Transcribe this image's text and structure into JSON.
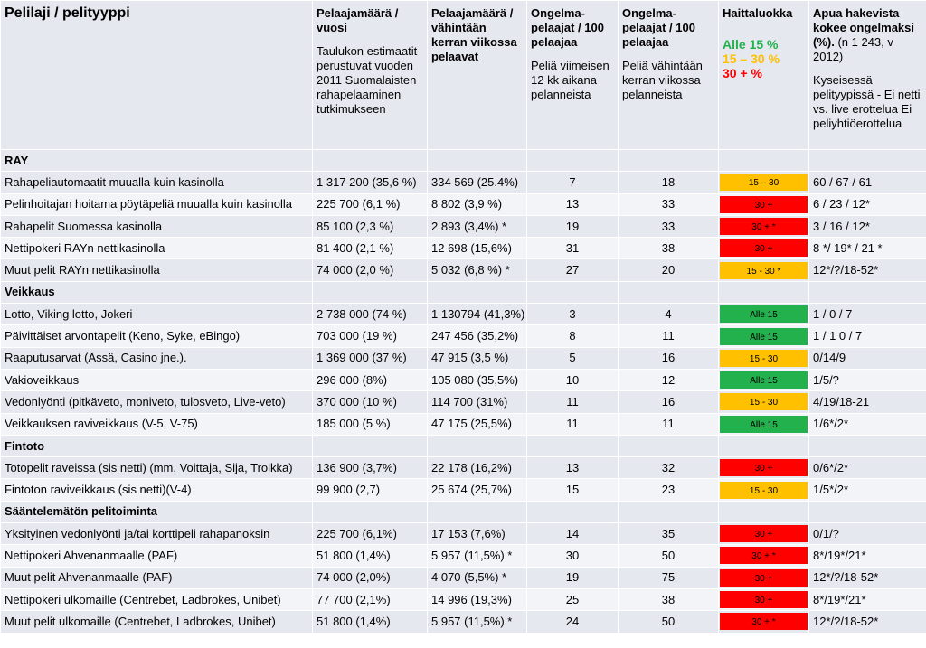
{
  "header": {
    "col1": "Pelilaji / pelityyppi",
    "col2_title": "Pelaajamäärä / vuosi",
    "col2_note": "Taulukon estimaatit perustuvat vuoden 2011 Suomalaisten rahapelaaminen tutkimukseen",
    "col3_title": "Pelaajamäärä / vähintään kerran viikossa pelaavat",
    "col4_title": "Ongelma-pelaajat / 100 pelaajaa",
    "col4_note": "Peliä viimeisen 12 kk aikana pelanneista",
    "col5_title": "Ongelma-pelaajat / 100 pelaajaa",
    "col5_note": "Peliä vähintään kerran viikossa pelanneista",
    "col6_title": "Haittaluokka",
    "legend_green": "Alle 15 %",
    "legend_orange": "15 – 30 %",
    "legend_red": "30 + %",
    "col7_title": "Apua hakevista kokee ongelmaksi (%).",
    "col7_sub": " (n 1 243, v 2012)",
    "col7_note": "Kyseisessä pelityypissä - Ei netti vs. live erottelua Ei peliyhtiöerottelua"
  },
  "colors": {
    "red": "#ff0000",
    "orange": "#ffc000",
    "green": "#23b14d",
    "row_dark": "#e6e8ef",
    "row_light": "#f3f4f8"
  },
  "rows": [
    {
      "type": "section",
      "name": "RAY"
    },
    {
      "type": "data",
      "name": "Rahapeliautomaatit muualla kuin kasinolla",
      "players": "1 317 200 (35,6 %)",
      "weekly": "334 569 (25.4%)",
      "p12": "7",
      "pweek": "18",
      "level": "orange",
      "label": "15 – 30",
      "help": "60 / 67 / 61"
    },
    {
      "type": "data",
      "name": "Pelinhoitajan hoitama pöytäpeliä muualla kuin kasinolla",
      "players": "225 700 (6,1 %)",
      "weekly": "8 802 (3,9 %)",
      "p12": "13",
      "pweek": "33",
      "level": "red",
      "label": "30 +",
      "help": "6 / 23 / 12*"
    },
    {
      "type": "data",
      "name": "Rahapelit Suomessa kasinolla",
      "players": "85 100 (2,3 %)",
      "weekly": "2 893 (3,4%) *",
      "p12": "19",
      "pweek": "33",
      "level": "red",
      "label": "30 + *",
      "help": "3 / 16 / 12*"
    },
    {
      "type": "data",
      "name": "Nettipokeri RAYn nettikasinolla",
      "players": "81 400 (2,1 %)",
      "weekly": "12 698 (15,6%)",
      "p12": "31",
      "pweek": "38",
      "level": "red",
      "label": "30 +",
      "help": "8 */ 19* / 21 *"
    },
    {
      "type": "data",
      "name": "Muut pelit RAYn nettikasinolla",
      "players": "74 000 (2,0 %)",
      "weekly": "5 032 (6,8 %) *",
      "p12": "27",
      "pweek": "20",
      "level": "orange",
      "label": "15 - 30 *",
      "help": "12*/?/18-52*"
    },
    {
      "type": "section",
      "name": "Veikkaus"
    },
    {
      "type": "data",
      "name": "Lotto, Viking lotto, Jokeri",
      "players": "2 738 000 (74 %)",
      "weekly": "1 130794 (41,3%)",
      "p12": "3",
      "pweek": "4",
      "level": "green",
      "label": "Alle 15",
      "help": "1 / 0 / 7"
    },
    {
      "type": "data",
      "name": "Päivittäiset arvontapelit (Keno, Syke, eBingo)",
      "players": "703 000 (19 %)",
      "weekly": "247 456 (35,2%)",
      "p12": "8",
      "pweek": "11",
      "level": "green",
      "label": "Alle 15",
      "help": "1 / 1 0 / 7"
    },
    {
      "type": "data",
      "name": "Raaputusarvat (Ässä, Casino jne.).",
      "players": "1 369 000 (37 %)",
      "weekly": "47 915 (3,5 %)",
      "p12": "5",
      "pweek": "16",
      "level": "orange",
      "label": "15 - 30",
      "help": "0/14/9"
    },
    {
      "type": "data",
      "name": "Vakioveikkaus",
      "players": "296 000 (8%)",
      "weekly": "105 080 (35,5%)",
      "p12": "10",
      "pweek": "12",
      "level": "green",
      "label": "Alle 15",
      "help": "1/5/?"
    },
    {
      "type": "data",
      "name": "Vedonlyönti (pitkäveto, moniveto, tulosveto, Live-veto)",
      "players": "370 000 (10 %)",
      "weekly": "114 700 (31%)",
      "p12": "11",
      "pweek": "16",
      "level": "orange",
      "label": "15 - 30",
      "help": "4/19/18-21"
    },
    {
      "type": "data",
      "name": "Veikkauksen raviveikkaus (V-5, V-75)",
      "players": "185 000 (5 %)",
      "weekly": "47 175 (25,5%)",
      "p12": "11",
      "pweek": "11",
      "level": "green",
      "label": "Alle 15",
      "help": "1/6*/2*"
    },
    {
      "type": "section",
      "name": "Fintoto"
    },
    {
      "type": "data",
      "name": "Totopelit raveissa (sis netti) (mm. Voittaja, Sija, Troikka)",
      "players": "136 900 (3,7%)",
      "weekly": "22 178 (16,2%)",
      "p12": "13",
      "pweek": "32",
      "level": "red",
      "label": "30 +",
      "help": "0/6*/2*"
    },
    {
      "type": "data",
      "name": "Fintoton raviveikkaus (sis netti)(V-4)",
      "players": "99 900 (2,7)",
      "weekly": "25 674 (25,7%)",
      "p12": "15",
      "pweek": "23",
      "level": "orange",
      "label": "15 - 30",
      "help": "1/5*/2*"
    },
    {
      "type": "section",
      "name": "Sääntelemätön pelitoiminta"
    },
    {
      "type": "data",
      "name": "Yksityinen vedonlyönti ja/tai korttipeli rahapanoksin",
      "players": "225 700 (6,1%)",
      "weekly": "17 153 (7,6%)",
      "p12": "14",
      "pweek": "35",
      "level": "red",
      "label": "30 +",
      "help": "0/1/?"
    },
    {
      "type": "data",
      "name": "Nettipokeri Ahvenanmaalle (PAF)",
      "players": "51 800 (1,4%)",
      "weekly": "5 957 (11,5%) *",
      "p12": "30",
      "pweek": "50",
      "level": "red",
      "label": "30 + *",
      "help": "8*/19*/21*"
    },
    {
      "type": "data",
      "name": "Muut pelit Ahvenanmaalle (PAF)",
      "players": "74 000 (2,0%)",
      "weekly": "4 070 (5,5%)   *",
      "p12": "19",
      "pweek": "75",
      "level": "red",
      "label": "30 +",
      "help": "12*/?/18-52*"
    },
    {
      "type": "data",
      "name": "Nettipokeri ulkomaille (Centrebet, Ladbrokes, Unibet)",
      "players": "77 700 (2,1%)",
      "weekly": "14 996 (19,3%)",
      "p12": "25",
      "pweek": "38",
      "level": "red",
      "label": "30 +",
      "help": "8*/19*/21*"
    },
    {
      "type": "data",
      "name": "Muut pelit ulkomaille (Centrebet, Ladbrokes, Unibet)",
      "players": "51 800 (1,4%)",
      "weekly": "5 957 (11,5%) *",
      "p12": "24",
      "pweek": "50",
      "level": "red",
      "label": "30 + *",
      "help": "12*/?/18-52*"
    }
  ]
}
